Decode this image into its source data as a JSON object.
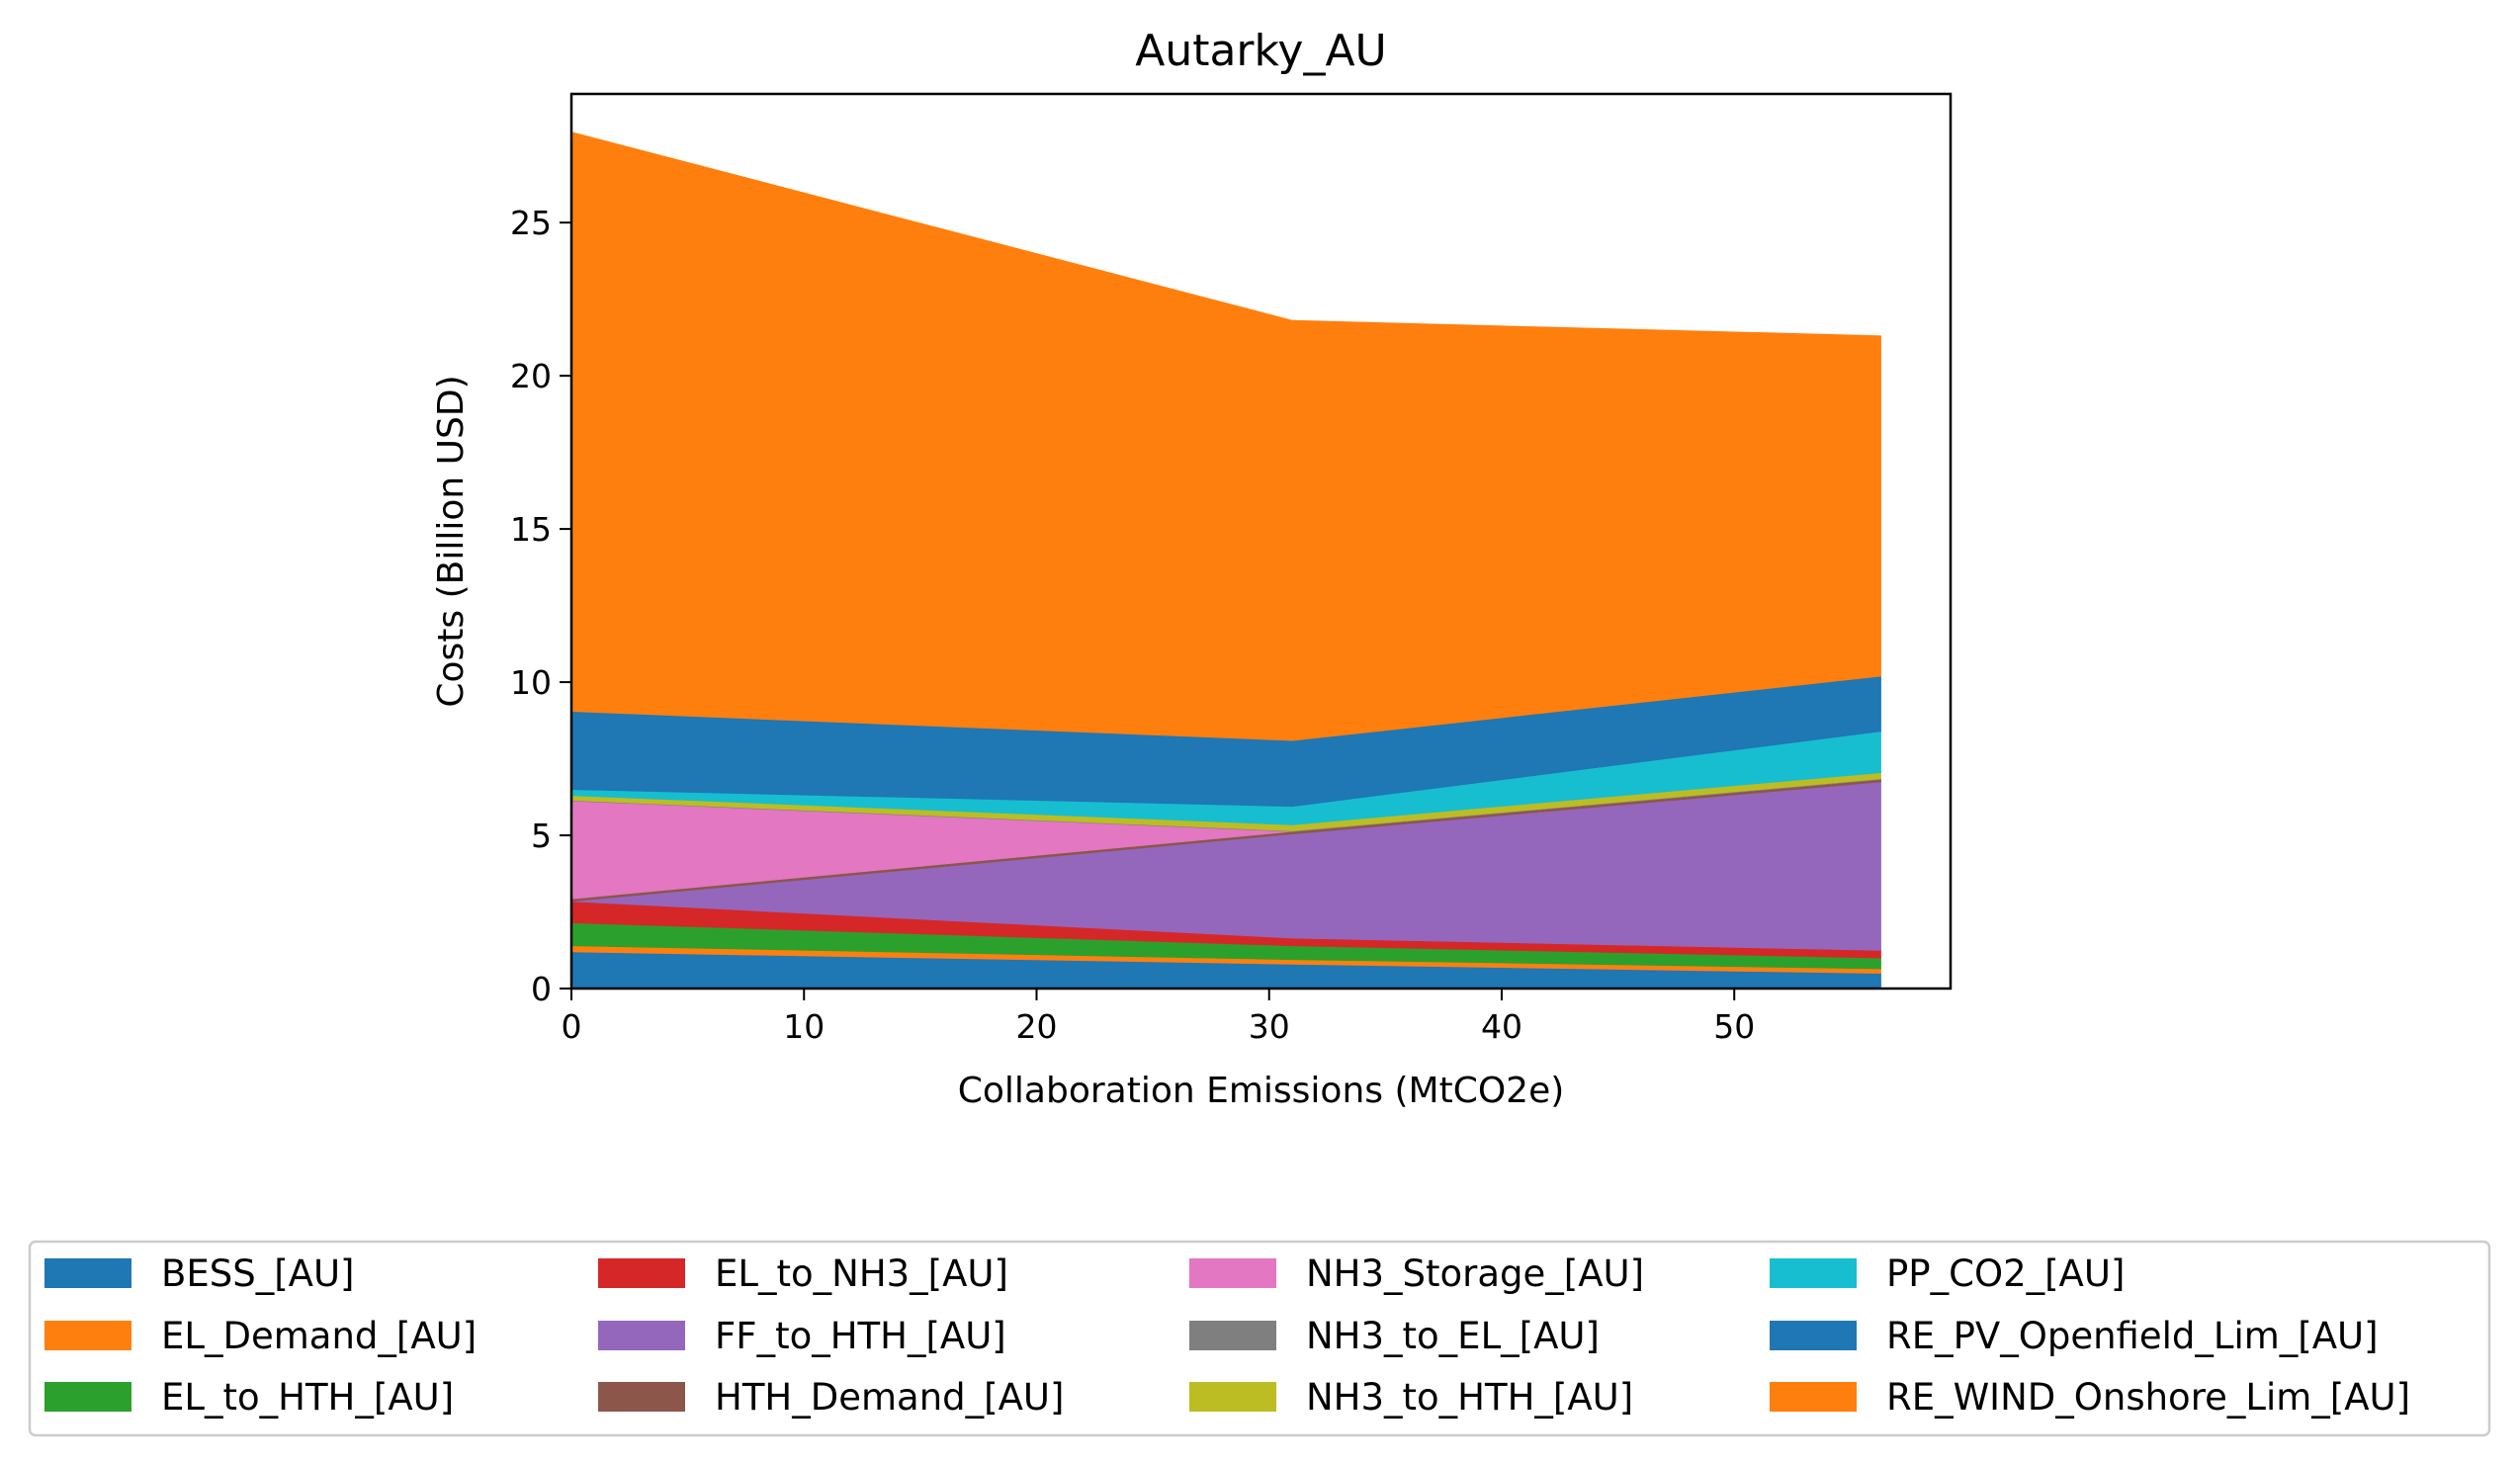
{
  "chart_data": {
    "type": "area",
    "stacked": true,
    "title": "Autarky_AU",
    "xlabel": "Collaboration Emissions (MtCO2e)",
    "ylabel": "Costs (Billion USD)",
    "xlim": [
      0,
      59.3
    ],
    "ylim": [
      0,
      29.2
    ],
    "xticks": [
      0,
      10,
      20,
      30,
      40,
      50
    ],
    "yticks": [
      0,
      5,
      10,
      15,
      20,
      25
    ],
    "grid": false,
    "legend_position": "bottom",
    "x": [
      0,
      31,
      56.3
    ],
    "series": [
      {
        "name": "BESS_[AU]",
        "color": "#1f77b4",
        "values": [
          1.2,
          0.8,
          0.5
        ]
      },
      {
        "name": "EL_Demand_[AU]",
        "color": "#ff7f0e",
        "values": [
          0.2,
          0.15,
          0.15
        ]
      },
      {
        "name": "EL_to_HTH_[AU]",
        "color": "#2ca02c",
        "values": [
          0.75,
          0.45,
          0.35
        ]
      },
      {
        "name": "EL_to_NH3_[AU]",
        "color": "#d62728",
        "values": [
          0.7,
          0.25,
          0.25
        ]
      },
      {
        "name": "FF_to_HTH_[AU]",
        "color": "#9467bd",
        "values": [
          0.0,
          3.4,
          5.5
        ]
      },
      {
        "name": "HTH_Demand_[AU]",
        "color": "#8c564b",
        "values": [
          0.08,
          0.08,
          0.08
        ]
      },
      {
        "name": "NH3_Storage_[AU]",
        "color": "#e377c2",
        "values": [
          3.2,
          0.0,
          0.0
        ]
      },
      {
        "name": "NH3_to_EL_[AU]",
        "color": "#7f7f7f",
        "values": [
          0.02,
          0.02,
          0.02
        ]
      },
      {
        "name": "NH3_to_HTH_[AU]",
        "color": "#bcbd22",
        "values": [
          0.15,
          0.2,
          0.2
        ]
      },
      {
        "name": "PP_CO2_[AU]",
        "color": "#17becf",
        "values": [
          0.2,
          0.6,
          1.35
        ]
      },
      {
        "name": "RE_PV_Openfield_Lim_[AU]",
        "color": "#1f77b4",
        "values": [
          2.55,
          2.15,
          1.8
        ]
      },
      {
        "name": "RE_WIND_Onshore_Lim_[AU]",
        "color": "#ff7f0e",
        "values": [
          18.9,
          13.7,
          11.1
        ]
      }
    ]
  }
}
